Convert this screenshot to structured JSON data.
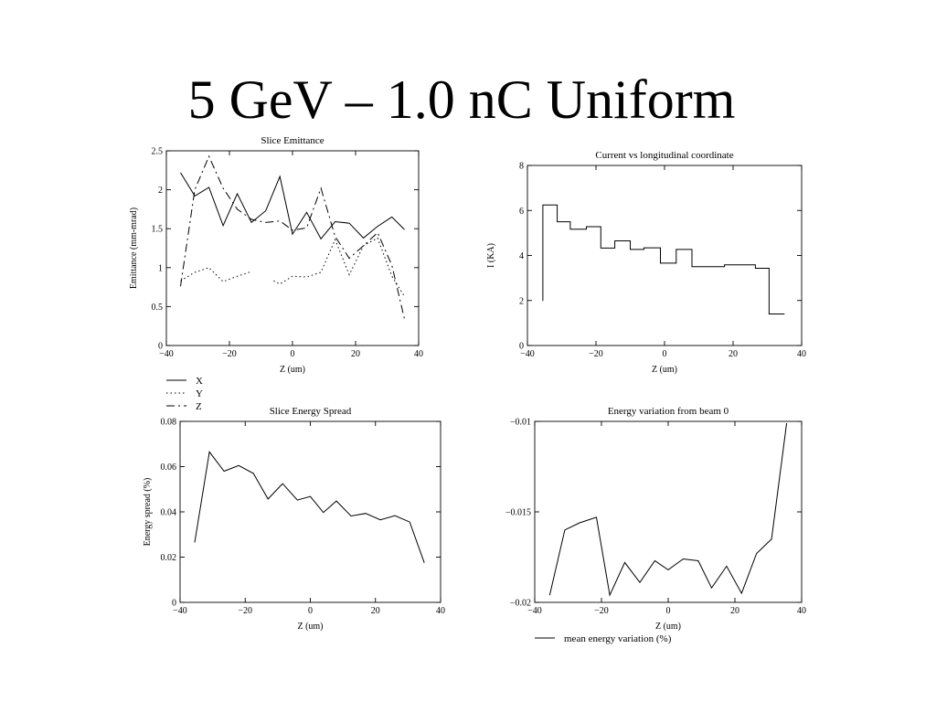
{
  "slide": {
    "title": "5 GeV – 1.0 nC Uniform"
  },
  "chart_data": [
    {
      "id": "slice-emittance",
      "type": "line",
      "title": "Slice Emittance",
      "xlabel": "Z (um)",
      "ylabel": "Emittance (mm-mrad)",
      "xlim": [
        -40,
        40
      ],
      "ylim": [
        0,
        2.5
      ],
      "xticks": [
        -40,
        -20,
        0,
        20,
        40
      ],
      "yticks": [
        0,
        0.5,
        1,
        1.5,
        2,
        2.5
      ],
      "legend": "bottom-left outside",
      "series": [
        {
          "name": "X",
          "style": "solid",
          "x": [
            -35.5,
            -31,
            -26.5,
            -22,
            -17.5,
            -13,
            -8.5,
            -4,
            0,
            4.5,
            9,
            13.5,
            18,
            22.5,
            27,
            31.5,
            35.5
          ],
          "y": [
            2.22,
            1.92,
            2.03,
            1.54,
            1.95,
            1.58,
            1.73,
            2.17,
            1.43,
            1.71,
            1.37,
            1.59,
            1.57,
            1.38,
            1.53,
            1.65,
            1.49
          ]
        },
        {
          "name": "Y",
          "style": "dotted",
          "x": [
            -35.5,
            -31,
            -26.5,
            -22,
            -17.5,
            -13,
            null,
            -6,
            -4,
            0,
            4.5,
            9,
            13.5,
            18,
            22.5,
            27,
            31.5,
            35.5
          ],
          "y": [
            0.83,
            0.94,
            1.0,
            0.82,
            0.89,
            0.95,
            null,
            0.83,
            0.79,
            0.89,
            0.88,
            0.94,
            1.36,
            0.91,
            1.28,
            1.38,
            0.89,
            0.63
          ],
          "note": "gap between -13 and -6"
        },
        {
          "name": "Z",
          "style": "dash-dot",
          "x": [
            -35.5,
            -31,
            -26.5,
            -22,
            -17.5,
            -13,
            -8.5,
            -4,
            0,
            4.5,
            9,
            13.5,
            18,
            22.5,
            27,
            31.5,
            35.5
          ],
          "y": [
            0.76,
            2.0,
            2.43,
            2.02,
            1.75,
            1.62,
            1.58,
            1.6,
            1.48,
            1.51,
            2.02,
            1.4,
            1.12,
            1.28,
            1.45,
            1.03,
            0.34
          ]
        }
      ]
    },
    {
      "id": "current-vs-z",
      "type": "line",
      "title": "Current vs longitudinal coordinate",
      "xlabel": "Z (um)",
      "ylabel": "I (KA)",
      "xlim": [
        -40,
        40
      ],
      "ylim": [
        0,
        8
      ],
      "xticks": [
        -40,
        -20,
        0,
        20,
        40
      ],
      "yticks": [
        0,
        2,
        4,
        6,
        8
      ],
      "series": [
        {
          "name": "",
          "style": "step",
          "x": [
            -35.5,
            -35.5,
            -31.3,
            -31.3,
            -27.5,
            -27.5,
            -22.8,
            -22.8,
            -18.6,
            -18.6,
            -14.5,
            -14.5,
            -10,
            -10,
            -6,
            -6,
            -1.2,
            -1.2,
            3.4,
            3.4,
            8,
            8,
            17.5,
            17.5,
            26.5,
            26.5,
            30.5,
            30.5,
            35
          ],
          "y": [
            1.98,
            6.24,
            6.24,
            5.5,
            5.5,
            5.17,
            5.17,
            5.28,
            5.28,
            4.33,
            4.33,
            4.65,
            4.65,
            4.27,
            4.27,
            4.34,
            4.34,
            3.66,
            3.66,
            4.27,
            4.27,
            3.5,
            3.5,
            3.58,
            3.58,
            3.43,
            3.43,
            1.4,
            1.4
          ]
        }
      ]
    },
    {
      "id": "slice-energy-spread",
      "type": "line",
      "title": "Slice Energy Spread",
      "xlabel": "Z (um)",
      "ylabel": "Energy spread (%)",
      "xlim": [
        -40,
        40
      ],
      "ylim": [
        0,
        0.08
      ],
      "xticks": [
        -40,
        -20,
        0,
        20,
        40
      ],
      "yticks": [
        0,
        0.02,
        0.04,
        0.06,
        0.08
      ],
      "series": [
        {
          "name": "",
          "style": "solid",
          "x": [
            -35.5,
            -31,
            -26.5,
            -22,
            -17.5,
            -13,
            -8.5,
            -4,
            0,
            4,
            8,
            12.5,
            17,
            21.5,
            26,
            30.5,
            35
          ],
          "y": [
            0.0265,
            0.0665,
            0.058,
            0.0605,
            0.057,
            0.0457,
            0.0525,
            0.0452,
            0.0468,
            0.0397,
            0.0448,
            0.0382,
            0.0393,
            0.0365,
            0.0383,
            0.0355,
            0.0175
          ]
        }
      ]
    },
    {
      "id": "energy-variation",
      "type": "line",
      "title": "Energy variation from beam 0",
      "xlabel": "Z (um)",
      "ylabel": "",
      "xlim": [
        -40,
        40
      ],
      "ylim": [
        -0.02,
        -0.01
      ],
      "xticks": [
        -40,
        -20,
        0,
        20,
        40
      ],
      "yticks": [
        -0.02,
        -0.015,
        -0.01
      ],
      "legend": "bottom-left outside",
      "series": [
        {
          "name": "mean energy variation (%)",
          "style": "solid",
          "x": [
            -35.5,
            -31,
            -26.5,
            -21.5,
            -17.5,
            -13,
            -8.5,
            -4,
            0,
            4.5,
            9,
            13,
            17.5,
            22,
            26.5,
            31,
            35.5
          ],
          "y": [
            -0.0196,
            -0.016,
            -0.0156,
            -0.0153,
            -0.0196,
            -0.0178,
            -0.0189,
            -0.0177,
            -0.0182,
            -0.0176,
            -0.0177,
            -0.0192,
            -0.018,
            -0.0195,
            -0.0173,
            -0.0165,
            -0.0101
          ]
        }
      ]
    }
  ]
}
